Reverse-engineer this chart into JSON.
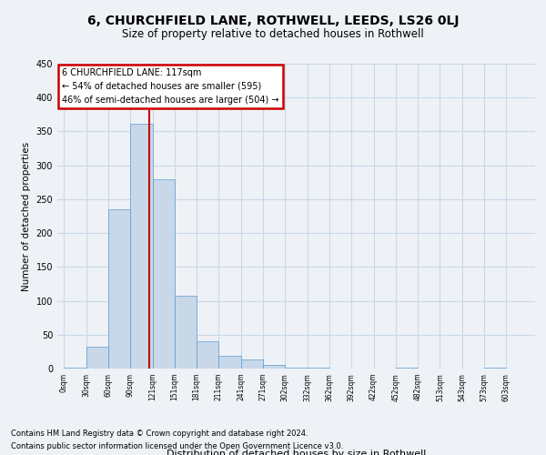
{
  "title1": "6, CHURCHFIELD LANE, ROTHWELL, LEEDS, LS26 0LJ",
  "title2": "Size of property relative to detached houses in Rothwell",
  "xlabel": "Distribution of detached houses by size in Rothwell",
  "ylabel": "Number of detached properties",
  "bin_labels": [
    "0sqm",
    "30sqm",
    "60sqm",
    "90sqm",
    "121sqm",
    "151sqm",
    "181sqm",
    "211sqm",
    "241sqm",
    "271sqm",
    "302sqm",
    "332sqm",
    "362sqm",
    "392sqm",
    "422sqm",
    "452sqm",
    "482sqm",
    "513sqm",
    "543sqm",
    "573sqm",
    "603sqm"
  ],
  "bar_values": [
    2,
    32,
    235,
    362,
    280,
    107,
    40,
    19,
    13,
    6,
    2,
    1,
    0,
    0,
    0,
    1,
    0,
    0,
    0,
    1,
    0
  ],
  "bar_color": "#c8d8e8",
  "bar_edge_color": "#5b9bd5",
  "grid_color": "#c8d8e8",
  "vline_color": "#cc0000",
  "annotation_box_text": "6 CHURCHFIELD LANE: 117sqm\n← 54% of detached houses are smaller (595)\n46% of semi-detached houses are larger (504) →",
  "annotation_box_edge_color": "#cc0000",
  "ylim": [
    0,
    450
  ],
  "yticks": [
    0,
    50,
    100,
    150,
    200,
    250,
    300,
    350,
    400,
    450
  ],
  "footnote1": "Contains HM Land Registry data © Crown copyright and database right 2024.",
  "footnote2": "Contains public sector information licensed under the Open Government Licence v3.0.",
  "bg_color": "#eef2f7",
  "plot_bg_color": "#eef2f7"
}
